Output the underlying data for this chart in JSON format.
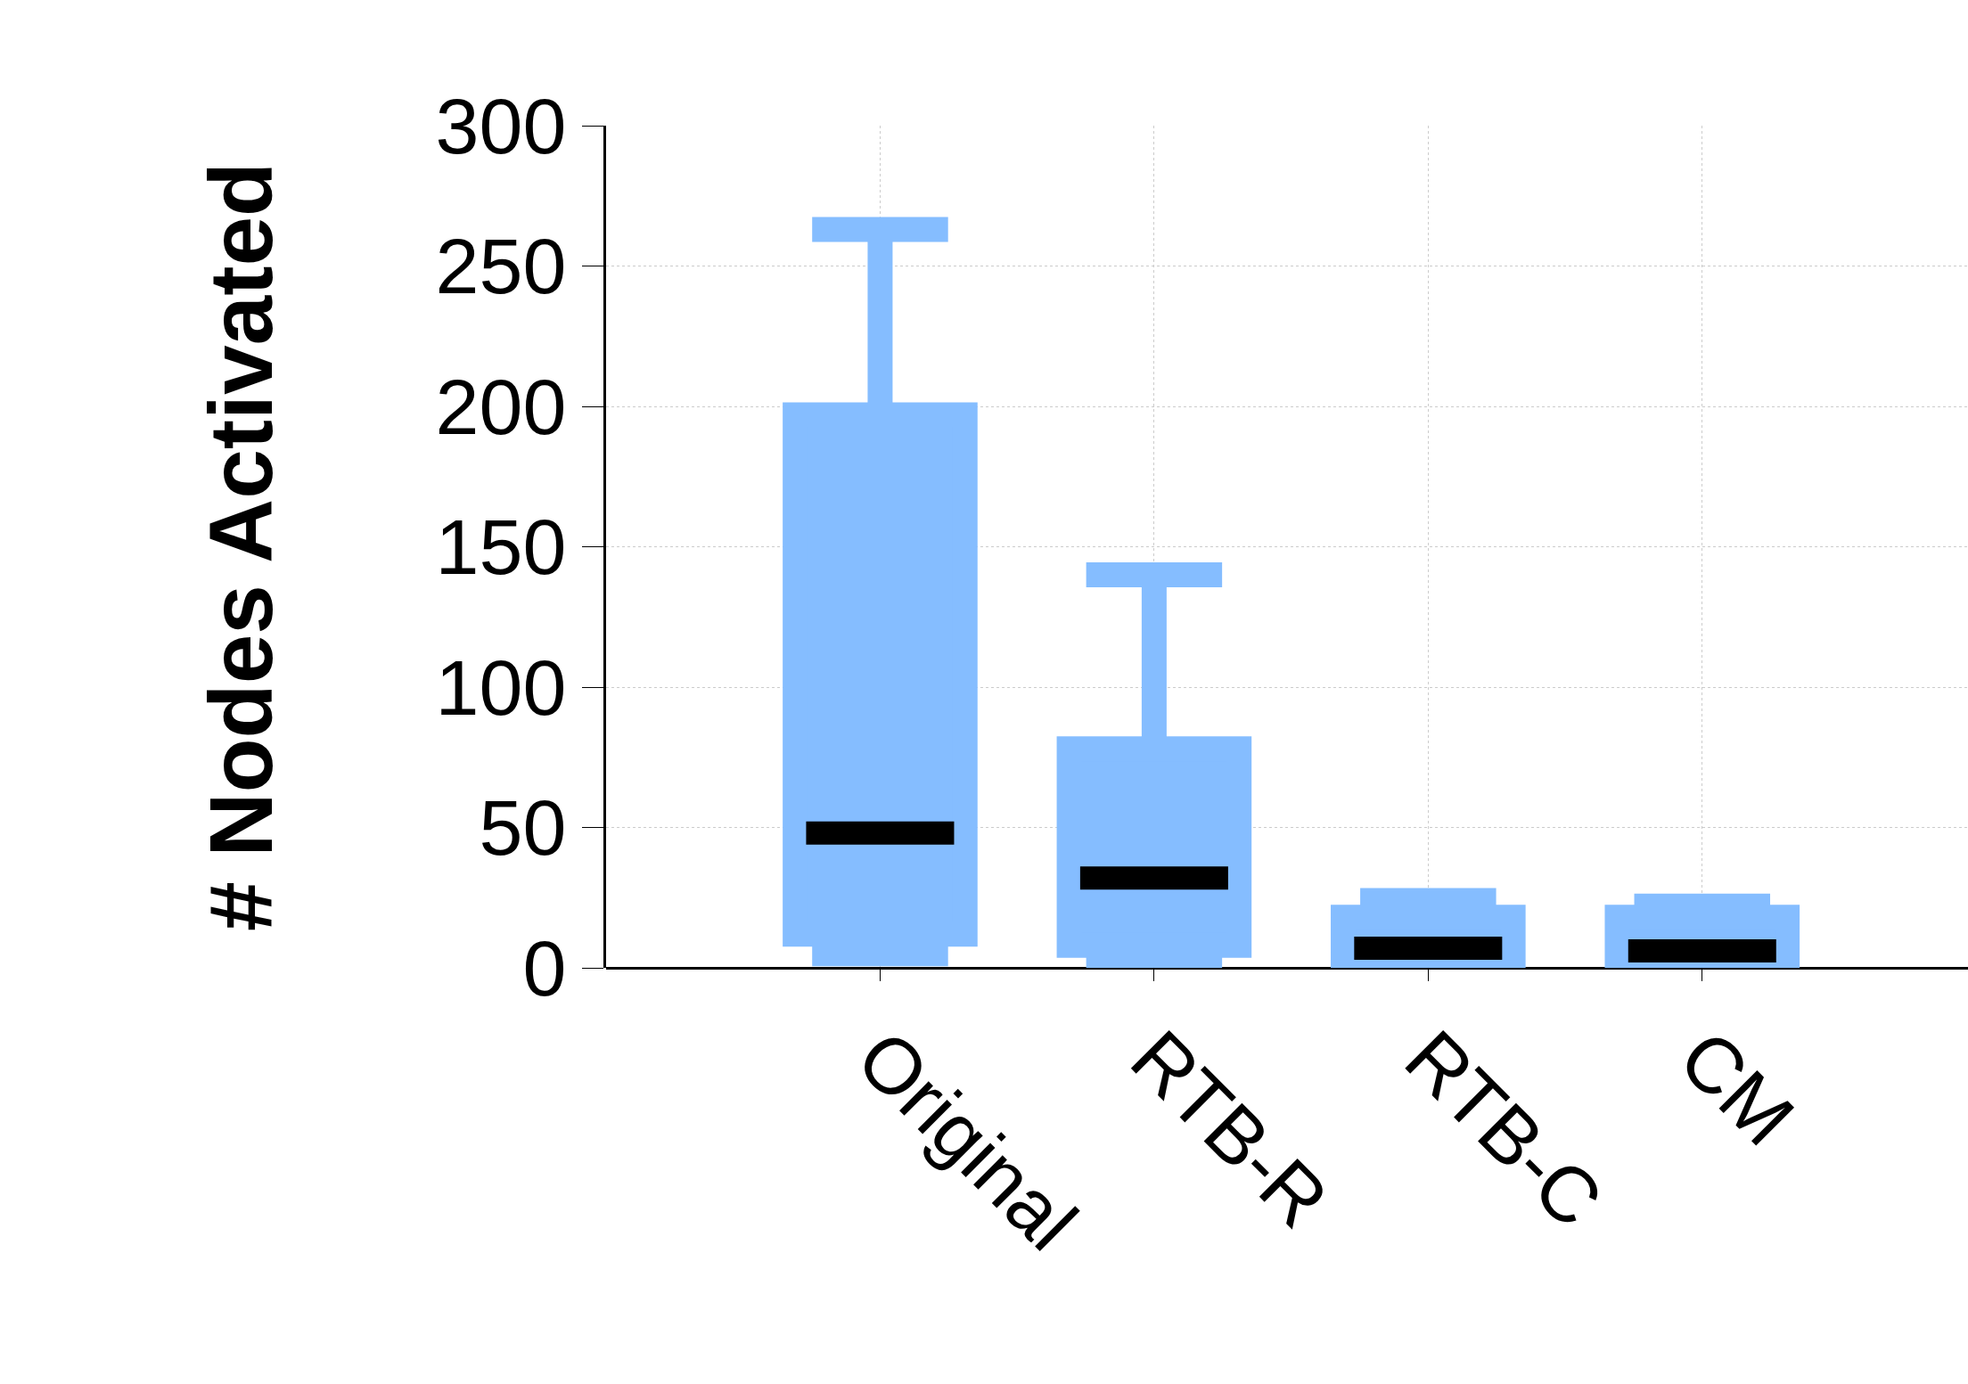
{
  "chart_data": {
    "type": "box",
    "ylabel": "# Nodes Activated",
    "categories": [
      "Original",
      "RTB-R",
      "RTB-C",
      "CM"
    ],
    "boxes": [
      {
        "low": 5,
        "q1": 12,
        "median": 48,
        "q3": 197,
        "high": 263
      },
      {
        "low": 2,
        "q1": 8,
        "median": 32,
        "q3": 78,
        "high": 140
      },
      {
        "low": 0,
        "q1": 1,
        "median": 7,
        "q3": 18,
        "high": 24
      },
      {
        "low": 0,
        "q1": 1,
        "median": 6,
        "q3": 18,
        "high": 22
      }
    ],
    "color": "#85bdff",
    "ylim": [
      0,
      300
    ],
    "yticks": [
      0,
      50,
      100,
      150,
      200,
      250,
      300
    ],
    "grid": true
  }
}
